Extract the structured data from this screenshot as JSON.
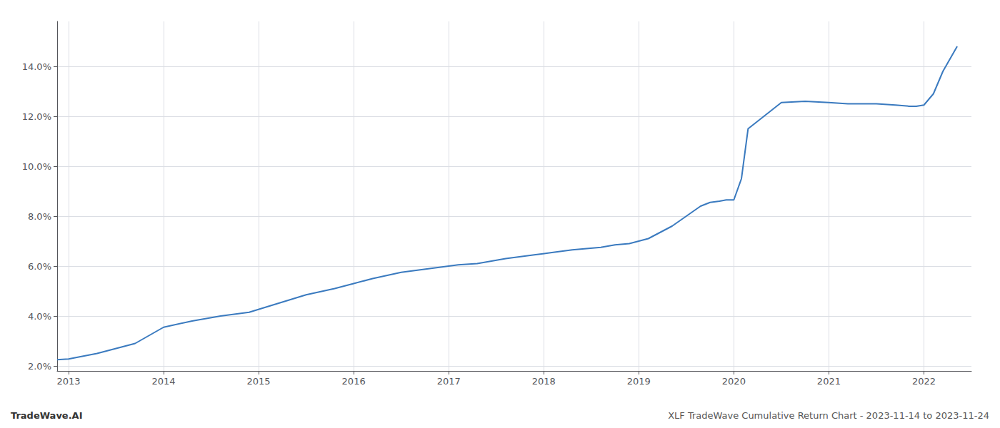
{
  "chart_data": {
    "type": "line",
    "title": "XLF TradeWave Cumulative Return Chart - 2023-11-14 to 2023-11-24",
    "annotations": [
      "TradeWave.AI"
    ],
    "x": [
      2012.88,
      2013.0,
      2013.3,
      2013.7,
      2014.0,
      2014.3,
      2014.6,
      2014.9,
      2015.2,
      2015.5,
      2015.8,
      2016.0,
      2016.2,
      2016.5,
      2016.7,
      2016.9,
      2017.1,
      2017.3,
      2017.6,
      2017.9,
      2018.1,
      2018.3,
      2018.6,
      2018.75,
      2018.9,
      2019.0,
      2019.1,
      2019.2,
      2019.35,
      2019.5,
      2019.65,
      2019.75,
      2019.85,
      2019.92,
      2020.0,
      2020.08,
      2020.15,
      2020.5,
      2020.75,
      2021.0,
      2021.2,
      2021.5,
      2021.7,
      2021.85,
      2021.92,
      2022.0,
      2022.1,
      2022.2,
      2022.35
    ],
    "values": [
      2.25,
      2.28,
      2.5,
      2.9,
      3.55,
      3.8,
      4.0,
      4.15,
      4.5,
      4.85,
      5.1,
      5.3,
      5.5,
      5.75,
      5.85,
      5.95,
      6.05,
      6.1,
      6.3,
      6.45,
      6.55,
      6.65,
      6.75,
      6.85,
      6.9,
      7.0,
      7.1,
      7.3,
      7.6,
      8.0,
      8.4,
      8.55,
      8.6,
      8.65,
      8.65,
      9.5,
      11.5,
      12.55,
      12.6,
      12.55,
      12.5,
      12.5,
      12.45,
      12.4,
      12.4,
      12.45,
      12.9,
      13.8,
      14.8
    ],
    "color": "#3a7abf",
    "xlim": [
      2012.88,
      2022.5
    ],
    "ylim": [
      1.8,
      15.8
    ],
    "xticks": [
      2013,
      2014,
      2015,
      2016,
      2017,
      2018,
      2019,
      2020,
      2021,
      2022
    ],
    "yticks": [
      {
        "value": 2.0,
        "label": "2.0%"
      },
      {
        "value": 4.0,
        "label": "4.0%"
      },
      {
        "value": 6.0,
        "label": "6.0%"
      },
      {
        "value": 8.0,
        "label": "8.0%"
      },
      {
        "value": 10.0,
        "label": "10.0%"
      },
      {
        "value": 12.0,
        "label": "12.0%"
      },
      {
        "value": 14.0,
        "label": "14.0%"
      }
    ],
    "grid": true
  }
}
